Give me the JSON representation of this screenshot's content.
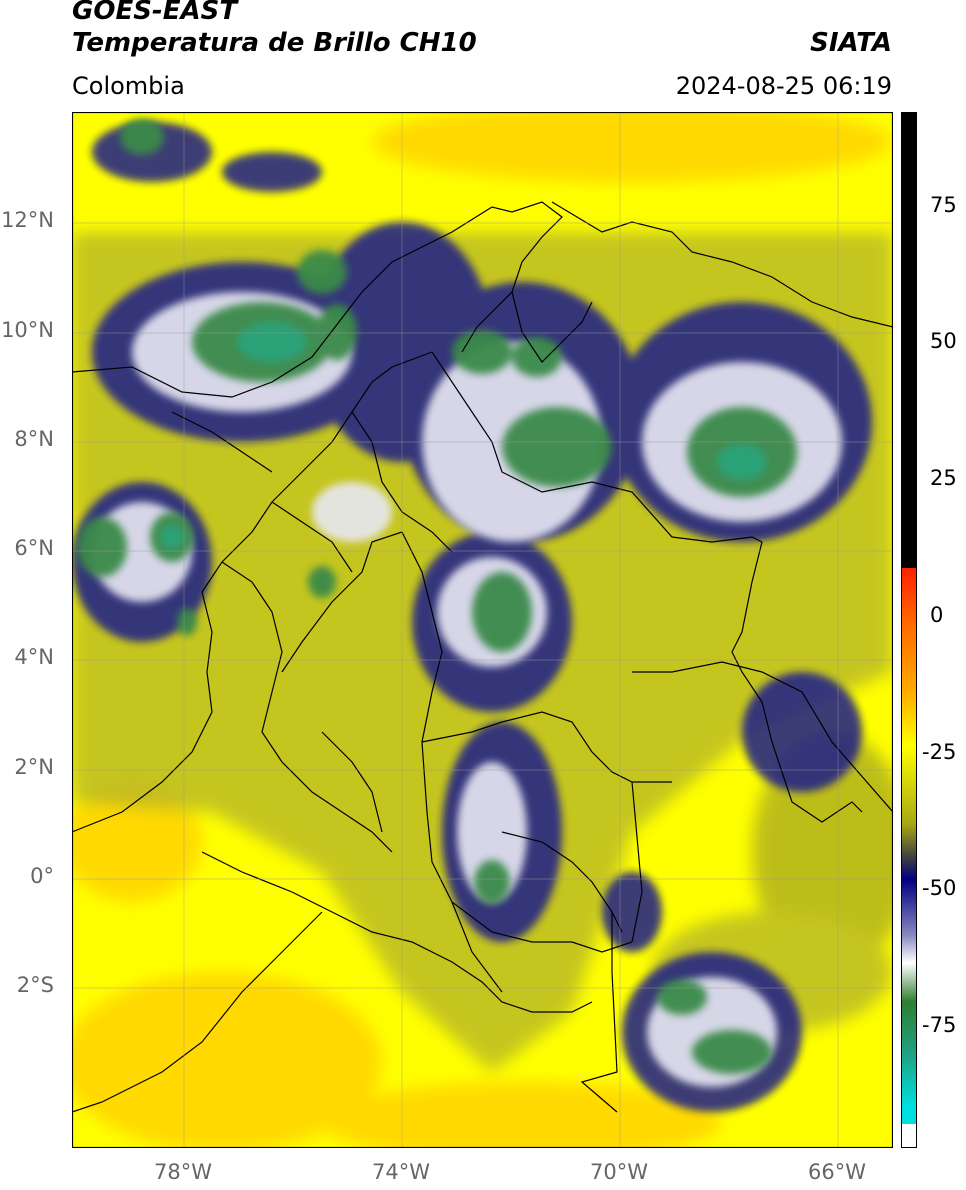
{
  "header": {
    "satellite": "GOES-EAST",
    "product": "Temperatura de Brillo CH10",
    "region": "Colombia",
    "agency": "SIATA",
    "datetime": "2024-08-25 06:19"
  },
  "map": {
    "lat_labels": [
      "12°N",
      "10°N",
      "8°N",
      "6°N",
      "4°N",
      "2°N",
      "0°",
      "2°S"
    ],
    "lon_labels": [
      "78°W",
      "74°W",
      "70°W",
      "66°W"
    ]
  },
  "colorbar": {
    "ticks": [
      "75",
      "50",
      "25",
      "0",
      "-25",
      "-50",
      "-75"
    ],
    "colors": {
      "black": "#000000",
      "red": "#ff2000",
      "orange": "#ffaa00",
      "yellow": "#ffff00",
      "olive": "#a8a814",
      "navy": "#000080",
      "white": "#ffffff",
      "green": "#2f7f2f",
      "teal": "#20b090",
      "cyan": "#00e0e0"
    }
  }
}
